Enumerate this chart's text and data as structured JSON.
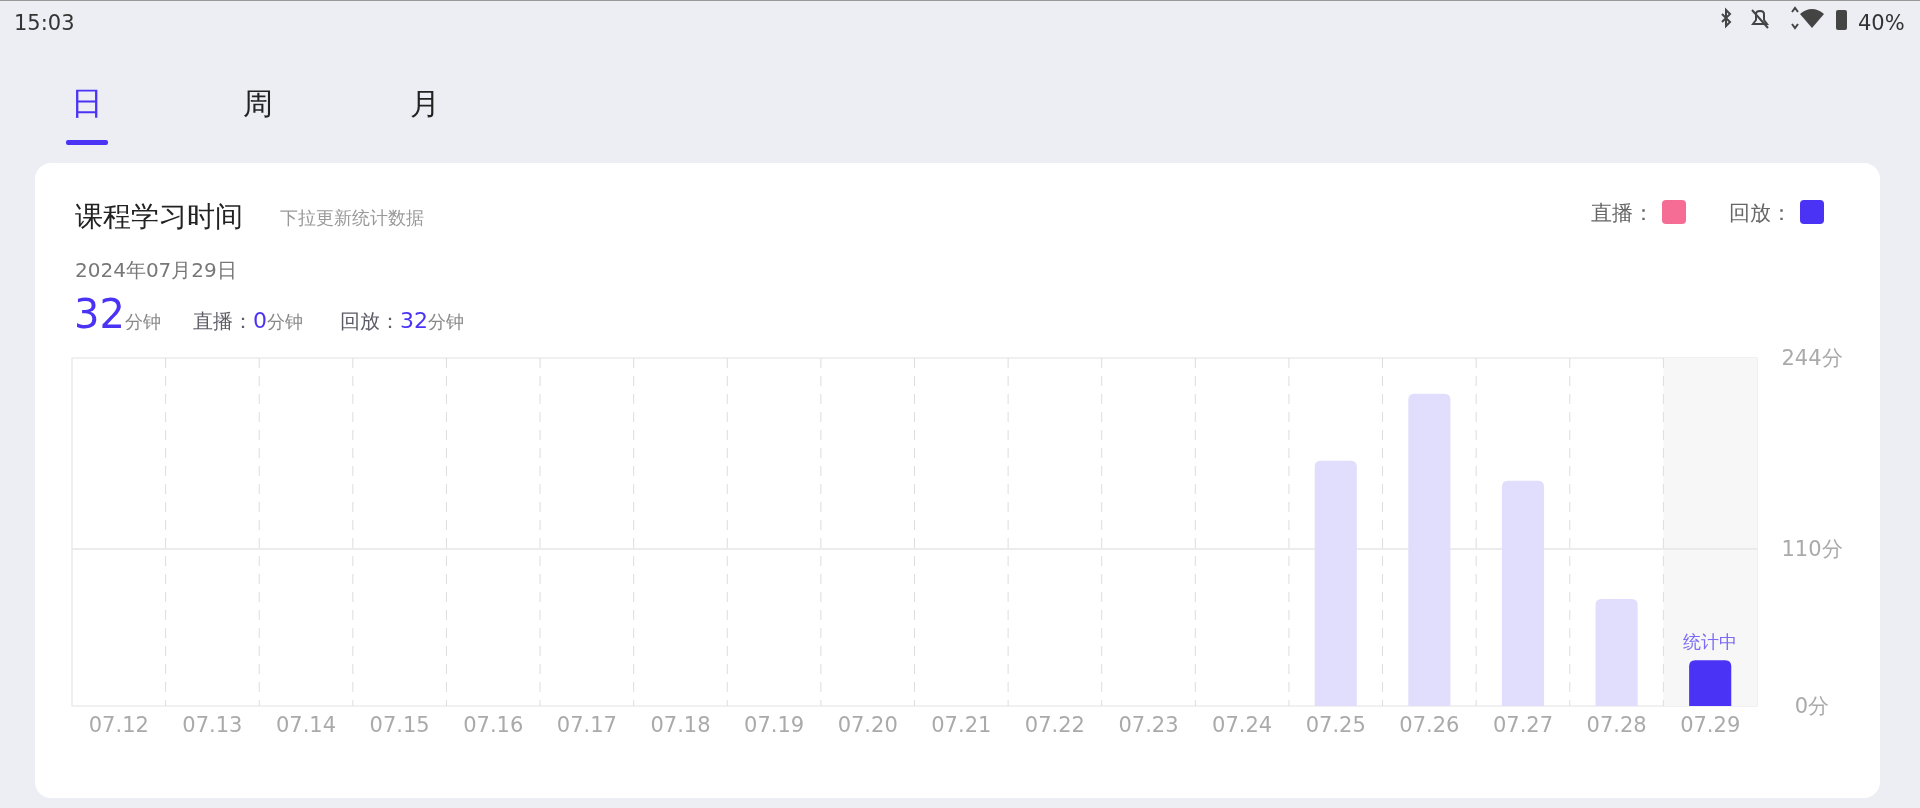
{
  "chart_data": {
    "type": "bar",
    "title": "课程学习时间",
    "subtitle": "下拉更新统计数据",
    "categories": [
      "07.12",
      "07.13",
      "07.14",
      "07.15",
      "07.16",
      "07.17",
      "07.18",
      "07.19",
      "07.20",
      "07.21",
      "07.22",
      "07.23",
      "07.24",
      "07.25",
      "07.26",
      "07.27",
      "07.28",
      "07.29"
    ],
    "series": [
      {
        "name": "直播：",
        "color": "#f56d94",
        "values": [
          0,
          0,
          0,
          0,
          0,
          0,
          0,
          0,
          0,
          0,
          0,
          0,
          0,
          0,
          0,
          0,
          0,
          0
        ]
      },
      {
        "name": "回放：",
        "color": "#4a33f5",
        "colors": [
          "#e0ddfd",
          "#e0ddfd",
          "#e0ddfd",
          "#e0ddfd",
          "#e0ddfd",
          "#e0ddfd",
          "#e0ddfd",
          "#e0ddfd",
          "#e0ddfd",
          "#e0ddfd",
          "#e0ddfd",
          "#e0ddfd",
          "#e0ddfd",
          "#e0ddfd",
          "#e0ddfd",
          "#e0ddfd",
          "#e0ddfd",
          "#4a33f5"
        ],
        "values": [
          0,
          0,
          0,
          0,
          0,
          0,
          0,
          0,
          0,
          0,
          0,
          0,
          0,
          172,
          219,
          158,
          75,
          32
        ]
      }
    ],
    "ylim": [
      0,
      244
    ],
    "yticks": [
      {
        "value": 0,
        "label": "0分"
      },
      {
        "value": 110,
        "label": "110分"
      },
      {
        "value": 244,
        "label": "244分"
      }
    ],
    "grid": "x",
    "legend": "top right",
    "ref_lines": [
      {
        "axis": "y",
        "value": 110,
        "color": "#e6e6e6"
      }
    ],
    "bands": [
      {
        "axis": "x",
        "from": "07.29",
        "to": "07.29",
        "color": "#f7f7f7"
      }
    ],
    "annotations": [
      {
        "text": "统计中",
        "x": "07.29",
        "y": 32
      },
      "15:03",
      "40%",
      "日",
      "周",
      "月",
      "2024年07月29日",
      "32分钟",
      "直播：0分钟",
      "回放：32分钟"
    ]
  }
}
